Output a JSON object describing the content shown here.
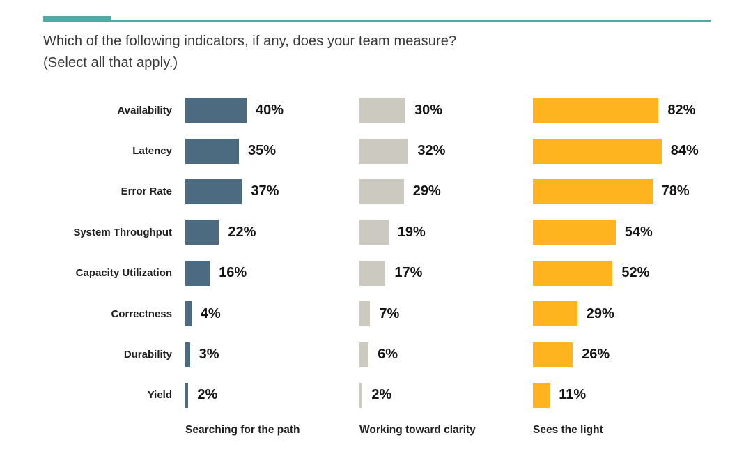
{
  "accent_color": "#54A8A8",
  "title": {
    "line1": "Which of the following indicators, if any, does your team measure?",
    "line2": "(Select all that apply.)"
  },
  "chart_data": {
    "type": "bar",
    "orientation": "horizontal",
    "title": "Which of the following indicators, if any, does your team measure? (Select all that apply.)",
    "categories": [
      "Availability",
      "Latency",
      "Error Rate",
      "System Throughput",
      "Capacity Utilization",
      "Correctness",
      "Durability",
      "Yield"
    ],
    "series": [
      {
        "name": "Searching for the path",
        "color": "#4D6B80",
        "values": [
          40,
          35,
          37,
          22,
          16,
          4,
          3,
          2
        ]
      },
      {
        "name": "Working toward clarity",
        "color": "#CCC9C1",
        "values": [
          30,
          32,
          29,
          19,
          17,
          7,
          6,
          2
        ]
      },
      {
        "name": "Sees the light",
        "color": "#FDB41E",
        "values": [
          82,
          84,
          78,
          54,
          52,
          29,
          26,
          11
        ]
      }
    ],
    "value_suffix": "%",
    "xlim": [
      0,
      100
    ],
    "grid": false,
    "legend_position": "bottom",
    "data_labels": true
  }
}
